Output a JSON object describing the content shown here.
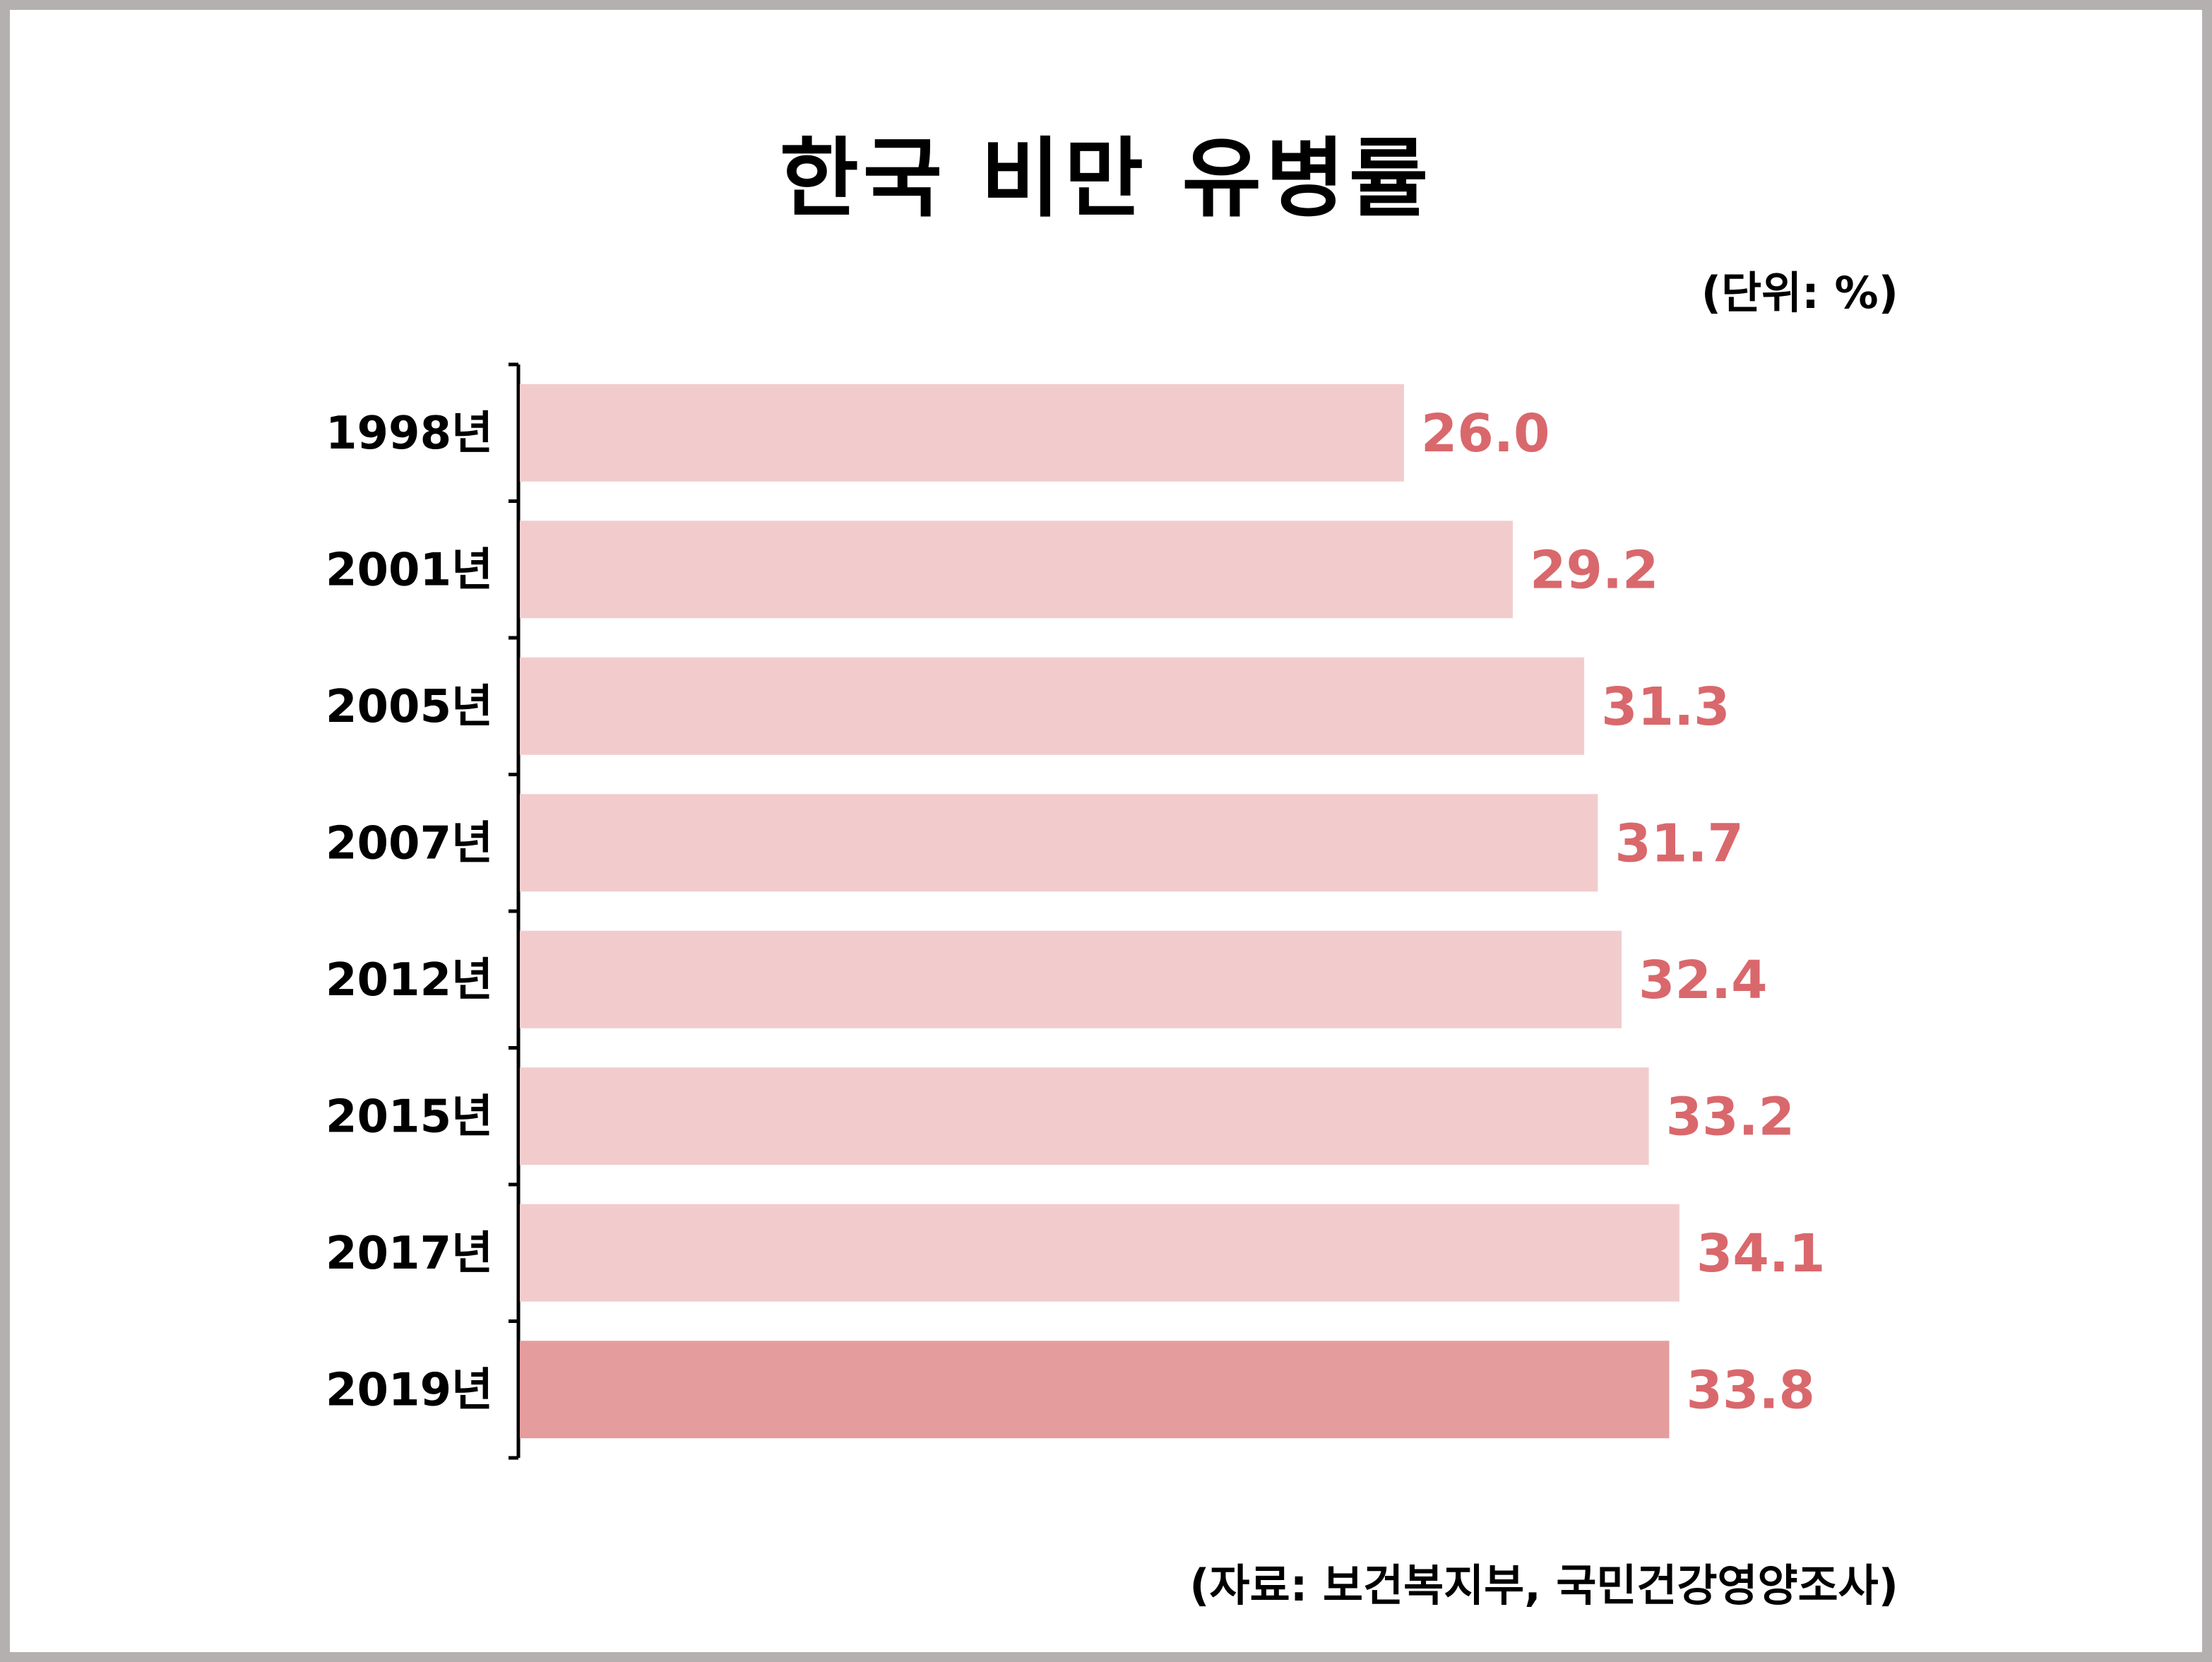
{
  "chart_data": {
    "type": "bar",
    "orientation": "horizontal",
    "title": "한국 비만 유병률",
    "unit": "(단위: %)",
    "source": "(자료: 보건복지부, 국민건강영양조사)",
    "categories": [
      "1998년",
      "2001년",
      "2005년",
      "2007년",
      "2012년",
      "2015년",
      "2017년",
      "2019년"
    ],
    "values": [
      26.0,
      29.2,
      31.3,
      31.7,
      32.4,
      33.2,
      34.1,
      33.8
    ],
    "value_labels": [
      "26.0",
      "29.2",
      "31.3",
      "31.7",
      "32.4",
      "33.2",
      "34.1",
      "33.8"
    ],
    "highlight_index": 7,
    "colors": {
      "bar": "#f2cccc",
      "bar_highlight": "#e59c9c",
      "value_label": "#d9686c",
      "axis": "#000000"
    },
    "grid": false
  }
}
